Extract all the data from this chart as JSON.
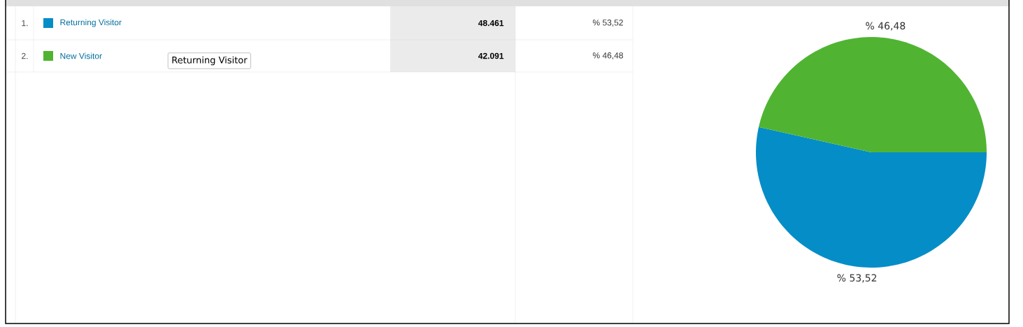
{
  "chart_data": {
    "type": "pie",
    "categories": [
      "Returning Visitor",
      "New Visitor"
    ],
    "values": [
      53.52,
      46.48
    ],
    "colors": [
      "#058dc7",
      "#50b432"
    ],
    "legend": "left",
    "value_labels": [
      "% 53,52",
      "% 46,48"
    ],
    "annotations": [
      "1.",
      "2.",
      "48.461",
      "42.091",
      "Returning Visitor"
    ]
  }
}
